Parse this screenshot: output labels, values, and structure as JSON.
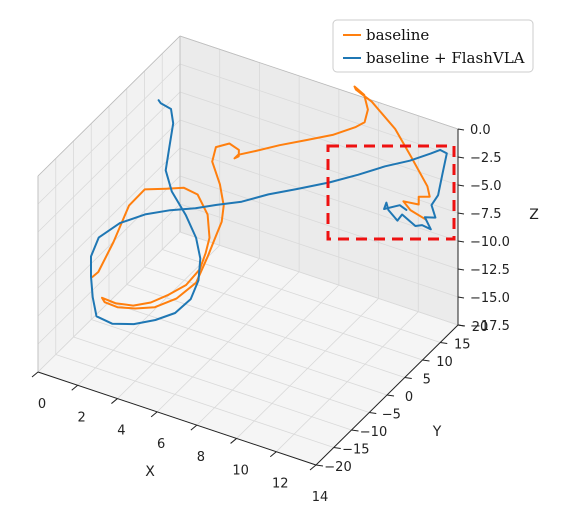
{
  "chart_data": {
    "type": "line",
    "projection": "3d",
    "title": "",
    "xlabel": "X",
    "ylabel": "Y",
    "zlabel": "Z",
    "xlim": [
      0,
      14
    ],
    "ylim": [
      -20,
      20
    ],
    "zlim": [
      -17.5,
      0.0
    ],
    "x_ticks": [
      "0",
      "2",
      "4",
      "6",
      "8",
      "10",
      "12",
      "14"
    ],
    "y_ticks": [
      "−20",
      "−15",
      "−10",
      "−5",
      "0",
      "5",
      "10",
      "15",
      "20"
    ],
    "z_ticks": [
      "0.0",
      "−2.5",
      "−5.0",
      "−7.5",
      "−10.0",
      "−12.5",
      "−15.0",
      "−17.5"
    ],
    "grid": true,
    "legend_position": "top-right",
    "highlight_box": {
      "style": "dashed",
      "color": "#ee1111"
    },
    "series": [
      {
        "name": "baseline",
        "color": "#ff7f0e",
        "points": [
          [
            0.6,
            -8.0,
            -12.4
          ],
          [
            0.8,
            -7.5,
            -12.0
          ],
          [
            1.3,
            -6.0,
            -9.5
          ],
          [
            1.9,
            -5.0,
            -6.2
          ],
          [
            2.6,
            -4.5,
            -4.5
          ],
          [
            3.6,
            -4.0,
            -4.0
          ],
          [
            4.4,
            -3.5,
            -3.6
          ],
          [
            5.0,
            -3.0,
            -4.0
          ],
          [
            5.5,
            -3.0,
            -5.5
          ],
          [
            5.6,
            -3.0,
            -7.5
          ],
          [
            5.4,
            -3.0,
            -9.0
          ],
          [
            5.2,
            -3.5,
            -10.4
          ],
          [
            4.6,
            -4.0,
            -12.0
          ],
          [
            3.8,
            -4.5,
            -13.2
          ],
          [
            3.0,
            -5.0,
            -14.2
          ],
          [
            2.2,
            -5.5,
            -14.8
          ],
          [
            1.4,
            -6.0,
            -14.9
          ],
          [
            0.9,
            -7.0,
            -14.4
          ],
          [
            1.0,
            -6.8,
            -14.8
          ],
          [
            1.5,
            -6.0,
            -15.2
          ],
          [
            2.3,
            -5.5,
            -15.0
          ],
          [
            3.2,
            -5.0,
            -14.5
          ],
          [
            4.2,
            -4.5,
            -13.3
          ],
          [
            5.1,
            -4.0,
            -11.5
          ],
          [
            5.6,
            -3.5,
            -9.0
          ],
          [
            6.0,
            -3.5,
            -7.0
          ],
          [
            6.3,
            -3.5,
            -5.5
          ],
          [
            6.4,
            -3.5,
            -4.0
          ],
          [
            6.3,
            -4.0,
            -2.0
          ],
          [
            6.0,
            -4.5,
            0.0
          ],
          [
            6.1,
            -4.0,
            1.2
          ],
          [
            6.6,
            -3.0,
            1.5
          ],
          [
            6.9,
            -2.0,
            0.8
          ],
          [
            6.8,
            -1.5,
            0.0
          ],
          [
            6.5,
            -1.0,
            -0.5
          ],
          [
            6.5,
            0.0,
            -0.5
          ],
          [
            7.0,
            2.0,
            -0.5
          ],
          [
            7.7,
            5.0,
            -0.5
          ],
          [
            8.5,
            8.0,
            -0.5
          ],
          [
            9.3,
            11.0,
            -0.5
          ],
          [
            9.9,
            14.0,
            -0.4
          ],
          [
            10.1,
            15.5,
            -0.3
          ],
          [
            10.0,
            17.0,
            0.3
          ],
          [
            9.6,
            18.2,
            1.0
          ],
          [
            9.0,
            18.8,
            1.2
          ],
          [
            9.0,
            19.2,
            0.8
          ],
          [
            9.8,
            19.2,
            0.2
          ],
          [
            11.0,
            19.1,
            -1.5
          ],
          [
            11.8,
            19.1,
            -3.5
          ],
          [
            12.6,
            19.2,
            -5.7
          ],
          [
            12.7,
            19.3,
            -6.6
          ],
          [
            12.2,
            19.0,
            -6.8
          ],
          [
            12.2,
            19.0,
            -7.5
          ],
          [
            11.5,
            18.6,
            -7.5
          ],
          [
            11.8,
            18.9,
            -8.2
          ],
          [
            12.5,
            19.4,
            -8.8
          ]
        ]
      },
      {
        "name": "baseline + FlashVLA",
        "color": "#1f77b4",
        "points": [
          [
            2.5,
            0.0,
            2.0
          ],
          [
            2.7,
            -0.5,
            2.0
          ],
          [
            3.3,
            -1.0,
            2.0
          ],
          [
            3.5,
            -1.5,
            1.0
          ],
          [
            3.4,
            -2.0,
            -1.0
          ],
          [
            3.3,
            -2.5,
            -3.0
          ],
          [
            3.7,
            -3.0,
            -4.5
          ],
          [
            4.5,
            -3.5,
            -6.0
          ],
          [
            5.1,
            -4.0,
            -7.5
          ],
          [
            5.4,
            -4.5,
            -9.0
          ],
          [
            5.4,
            -5.0,
            -10.8
          ],
          [
            5.1,
            -5.5,
            -12.5
          ],
          [
            4.4,
            -6.0,
            -14.0
          ],
          [
            3.5,
            -6.5,
            -15.0
          ],
          [
            2.5,
            -7.0,
            -15.8
          ],
          [
            1.5,
            -7.5,
            -16.2
          ],
          [
            0.8,
            -8.0,
            -15.8
          ],
          [
            0.7,
            -8.5,
            -14.0
          ],
          [
            0.7,
            -9.0,
            -12.0
          ],
          [
            0.7,
            -9.0,
            -10.2
          ],
          [
            1.0,
            -8.5,
            -8.5
          ],
          [
            1.8,
            -7.0,
            -7.2
          ],
          [
            2.8,
            -5.5,
            -6.3
          ],
          [
            3.8,
            -4.0,
            -5.8
          ],
          [
            4.8,
            -2.5,
            -5.5
          ],
          [
            5.6,
            -1.0,
            -5.2
          ],
          [
            6.5,
            1.0,
            -5.0
          ],
          [
            7.4,
            3.5,
            -4.6
          ],
          [
            8.4,
            6.0,
            -4.3
          ],
          [
            9.5,
            9.0,
            -4.0
          ],
          [
            10.5,
            11.5,
            -3.5
          ],
          [
            11.4,
            14.0,
            -3.0
          ],
          [
            12.2,
            16.5,
            -2.8
          ],
          [
            12.8,
            19.0,
            -2.6
          ],
          [
            13.1,
            20.0,
            -2.4
          ],
          [
            13.4,
            20.2,
            -2.6
          ],
          [
            13.2,
            20.1,
            -4.5
          ],
          [
            13.0,
            20.0,
            -6.5
          ],
          [
            12.7,
            19.8,
            -7.5
          ],
          [
            12.9,
            19.8,
            -8.5
          ],
          [
            12.4,
            19.6,
            -8.7
          ],
          [
            12.7,
            19.6,
            -9.6
          ],
          [
            12.3,
            19.4,
            -9.4
          ],
          [
            12.0,
            19.2,
            -9.6
          ],
          [
            11.4,
            18.8,
            -8.8
          ],
          [
            11.2,
            18.6,
            -9.4
          ],
          [
            10.8,
            18.3,
            -8.6
          ],
          [
            10.7,
            18.3,
            -8.0
          ],
          [
            10.6,
            18.2,
            -8.6
          ],
          [
            11.3,
            18.7,
            -8.0
          ],
          [
            11.6,
            18.9,
            -8.3
          ]
        ]
      }
    ]
  }
}
